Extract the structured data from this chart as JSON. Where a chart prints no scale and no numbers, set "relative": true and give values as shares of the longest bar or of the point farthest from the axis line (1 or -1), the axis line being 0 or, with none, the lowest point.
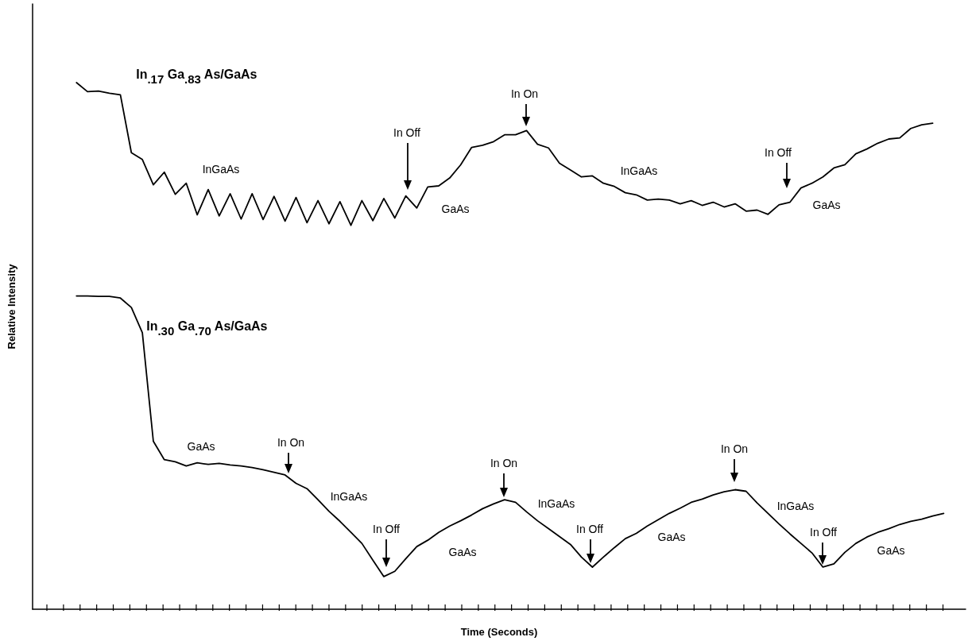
{
  "chart_data": {
    "type": "line",
    "relative": true,
    "xlabel": "Time (Seconds)",
    "ylabel": "Relative Intensity",
    "marker": "none",
    "grid": false,
    "legend": false,
    "categories": [
      null,
      null,
      null,
      null,
      null,
      null,
      null,
      null,
      null,
      null,
      null,
      null,
      null,
      null,
      null,
      null,
      null,
      null,
      null,
      null,
      null,
      null,
      null,
      null,
      null,
      null,
      null,
      null,
      null,
      null,
      null,
      null,
      null,
      null,
      null,
      null,
      null,
      null,
      null,
      null,
      null,
      null,
      null,
      null,
      null,
      null,
      null,
      null,
      null,
      null,
      null,
      null,
      null,
      null,
      null,
      null,
      null,
      null,
      null,
      null,
      null,
      null,
      null,
      null,
      null,
      null,
      null,
      null,
      null,
      null,
      null,
      null,
      null,
      null,
      null,
      null,
      null,
      null,
      null,
      null,
      null,
      null,
      null,
      null,
      null,
      null
    ],
    "series": [
      {
        "name": "In$_{.17}$ Ga$_{.83}$ As/GaAs",
        "color": "#000000",
        "values": [
          null,
          null,
          null,
          null,
          1.0,
          0.983,
          0.984,
          0.98,
          0.977,
          0.867,
          0.854,
          0.806,
          0.83,
          0.788,
          0.809,
          0.749,
          0.797,
          0.747,
          0.789,
          0.741,
          0.789,
          0.74,
          0.784,
          0.737,
          0.782,
          0.734,
          0.776,
          0.732,
          0.774,
          0.729,
          0.776,
          0.738,
          0.78,
          0.743,
          0.785,
          0.762,
          0.802,
          0.804,
          0.819,
          0.844,
          0.877,
          0.881,
          0.888,
          0.901,
          0.901,
          0.909,
          0.883,
          0.876,
          0.847,
          0.834,
          0.821,
          0.823,
          0.809,
          0.803,
          0.791,
          0.787,
          0.777,
          0.779,
          0.777,
          0.77,
          0.776,
          0.767,
          0.773,
          0.764,
          0.77,
          0.756,
          0.758,
          0.75,
          0.768,
          0.773,
          0.8,
          0.809,
          0.821,
          0.838,
          0.844,
          0.865,
          0.874,
          0.885,
          0.893,
          0.895,
          0.913,
          0.92,
          0.923,
          null,
          null,
          null
        ]
      },
      {
        "name": "In$_{.30}$ Ga$_{.70}$ As/GaAs",
        "color": "#000000",
        "values": [
          null,
          null,
          null,
          null,
          0.595,
          0.595,
          0.594,
          0.594,
          0.591,
          0.573,
          0.525,
          0.319,
          0.284,
          0.28,
          0.272,
          0.278,
          0.275,
          0.277,
          0.274,
          0.272,
          0.269,
          0.265,
          0.26,
          0.255,
          0.239,
          0.229,
          0.208,
          0.186,
          0.167,
          0.146,
          0.125,
          0.093,
          0.062,
          0.072,
          0.096,
          0.119,
          0.131,
          0.146,
          0.158,
          0.168,
          0.179,
          0.191,
          0.2,
          0.208,
          0.203,
          0.185,
          0.168,
          0.153,
          0.138,
          0.123,
          0.099,
          0.08,
          0.099,
          0.117,
          0.134,
          0.144,
          0.158,
          0.17,
          0.182,
          0.192,
          0.203,
          0.209,
          0.217,
          0.223,
          0.227,
          0.224,
          0.202,
          0.182,
          0.162,
          0.143,
          0.125,
          0.107,
          0.08,
          0.086,
          0.108,
          0.125,
          0.137,
          0.146,
          0.153,
          0.161,
          0.167,
          0.171,
          0.177,
          0.182,
          null,
          null
        ]
      }
    ],
    "annotations": [
      "InGaAs",
      "In Off",
      "GaAs",
      "In On",
      "InGaAs",
      "In Off",
      "GaAs",
      "GaAs",
      "In On",
      "InGaAs",
      "In Off",
      "GaAs",
      "In On",
      "InGaAs",
      "In Off",
      "GaAs",
      "In On",
      "InGaAs",
      "In Off",
      "GaAs"
    ]
  }
}
